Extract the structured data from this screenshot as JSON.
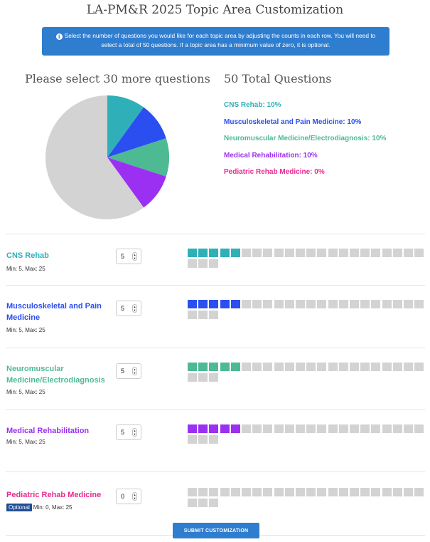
{
  "page": {
    "title": "LA-PM&R 2025 Topic Area Customization",
    "info_text": "Select the number of questions you would like for each topic area by adjusting the counts in each row. You will need to select a total of 50 questions. If a topic area has a minimum value of zero, it is optional.",
    "select_heading": "Please select 30 more questions",
    "total_heading": "50 Total Questions",
    "submit_label": "SUBMIT CUSTOMIZATION"
  },
  "colors": {
    "unselected": "#d3d3d3",
    "accent": "#2f7dcf"
  },
  "legend": [
    {
      "text": "CNS Rehab: 10%",
      "color": "#2fb0b8"
    },
    {
      "text": "Musculoskeletal and Pain Medicine: 10%",
      "color": "#2b4ef0"
    },
    {
      "text": "Neuromuscular Medicine/Electrodiagnosis: 10%",
      "color": "#4dba94"
    },
    {
      "text": "Medical Rehabilitation: 10%",
      "color": "#9b30f2"
    },
    {
      "text": "Pediatric Rehab Medicine: 0%",
      "color": "#e82a8f"
    }
  ],
  "chart_data": {
    "type": "pie",
    "slices": [
      {
        "label": "CNS Rehab",
        "value": 10,
        "color": "#2fb0b8"
      },
      {
        "label": "Musculoskeletal and Pain Medicine",
        "value": 10,
        "color": "#2b4ef0"
      },
      {
        "label": "Neuromuscular Medicine/Electrodiagnosis",
        "value": 10,
        "color": "#4dba94"
      },
      {
        "label": "Medical Rehabilitation",
        "value": 10,
        "color": "#9b30f2"
      },
      {
        "label": "Pediatric Rehab Medicine",
        "value": 0,
        "color": "#e82a8f"
      },
      {
        "label": "Unselected",
        "value": 60,
        "color": "#d3d3d3"
      }
    ]
  },
  "topics": [
    {
      "name": "CNS Rehab",
      "color": "#2fb0b8",
      "range": "Min: 5, Max: 25",
      "optional": false,
      "value": "5",
      "selected": 5,
      "total": 25
    },
    {
      "name": "Musculoskeletal and Pain Medicine",
      "color": "#2b4ef0",
      "range": "Min: 5, Max: 25",
      "optional": false,
      "value": "5",
      "selected": 5,
      "total": 25
    },
    {
      "name": "Neuromuscular Medicine/Electrodiagnosis",
      "color": "#4dba94",
      "range": "Min: 5, Max: 25",
      "optional": false,
      "value": "5",
      "selected": 5,
      "total": 25
    },
    {
      "name": "Medical Rehabilitation",
      "color": "#9b30f2",
      "range": "Min: 5, Max: 25",
      "optional": false,
      "value": "5",
      "selected": 5,
      "total": 25
    },
    {
      "name": "Pediatric Rehab Medicine",
      "color": "#e82a8f",
      "range": "Min: 0, Max: 25",
      "optional": true,
      "optional_label": "Optional",
      "value": "0",
      "selected": 0,
      "total": 25
    }
  ]
}
